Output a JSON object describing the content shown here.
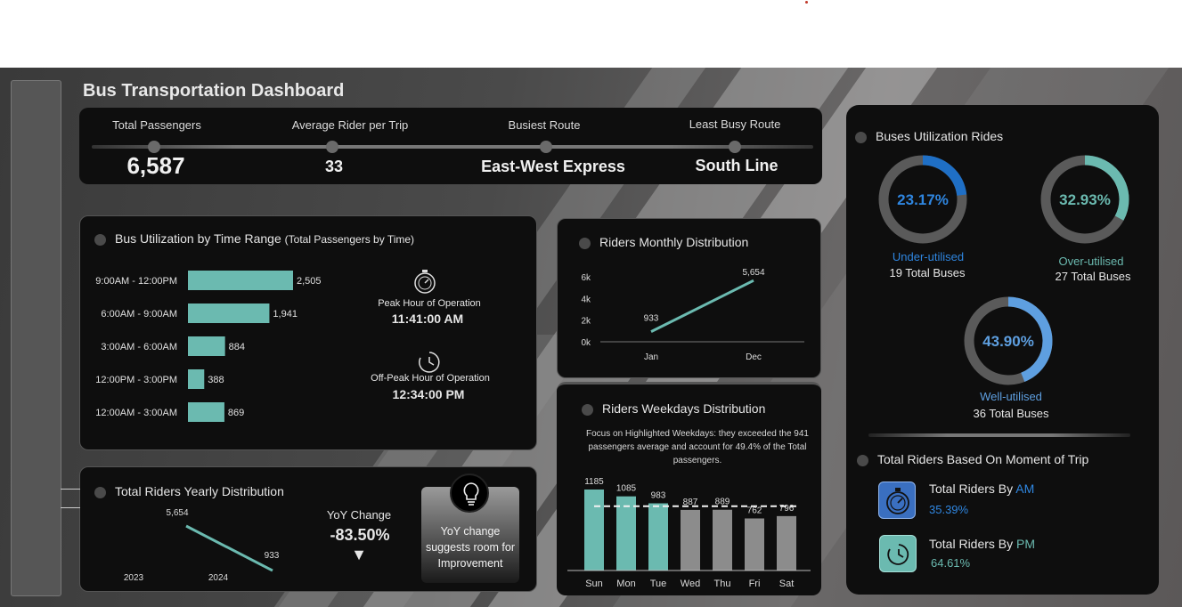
{
  "dashboard": {
    "title": "Bus Transportation Dashboard"
  },
  "kpis": [
    {
      "label": "Total Passengers",
      "value": "6,587"
    },
    {
      "label": "Average Rider per Trip",
      "value": "33"
    },
    {
      "label": "Busiest Route",
      "value": "East-West Express"
    },
    {
      "label": "Least Busy Route",
      "value": "South Line"
    }
  ],
  "time_range": {
    "title": "Bus Utilization by Time Range",
    "subtitle": "(Total Passengers by Time)",
    "peak_label": "Peak Hour of Operation",
    "peak_value": "11:41:00 AM",
    "offpeak_label": "Off-Peak Hour of Operation",
    "offpeak_value": "12:34:00 PM",
    "bar_color": "#6bbab0"
  },
  "monthly": {
    "title": "Riders Monthly Distribution",
    "line_color": "#6bbab0"
  },
  "weekdays": {
    "title": "Riders Weekdays Distribution",
    "note": "Focus on Highlighted Weekdays: they exceeded the 941 passengers average and account for 49.4% of the Total passengers.",
    "highlight_color": "#6bbab0",
    "other_color": "#8c8c8c"
  },
  "yearly": {
    "title": "Total Riders Yearly Distribution",
    "yoy_label": "YoY Change",
    "yoy_value": "-83.50%",
    "yoy_arrow": "▼",
    "insight": "YoY change suggests room for Improvement"
  },
  "utilization": {
    "title": "Buses Utilization Rides",
    "items": [
      {
        "pct": "23.17%",
        "fraction": 0.2317,
        "label": "Under-utilised",
        "count": "19 Total Buses",
        "color": "#1f6fc5",
        "text_color": "#2f86e0"
      },
      {
        "pct": "32.93%",
        "fraction": 0.3293,
        "label": "Over-utilised",
        "count": "27 Total Buses",
        "color": "#6bbab0",
        "text_color": "#6bbab0"
      },
      {
        "pct": "43.90%",
        "fraction": 0.439,
        "label": "Well-utilised",
        "count": "36 Total Buses",
        "color": "#5e9fe0",
        "text_color": "#5e9fe0"
      }
    ]
  },
  "moment": {
    "title": "Total Riders Based On Moment of Trip",
    "am_label_prefix": "Total Riders By ",
    "am_label_suffix": "AM",
    "am_value": "35.39%",
    "am_color": "#2f86e0",
    "pm_label_prefix": "Total Riders By ",
    "pm_label_suffix": "PM",
    "pm_value": "64.61%",
    "pm_color": "#6bbab0"
  },
  "chart_data": [
    {
      "type": "bar",
      "title": "Bus Utilization by Time Range",
      "orientation": "horizontal",
      "categories": [
        "9:00AM - 12:00PM",
        "6:00AM - 9:00AM",
        "3:00AM - 6:00AM",
        "12:00PM - 3:00PM",
        "12:00AM - 3:00AM"
      ],
      "values": [
        2505,
        1941,
        884,
        388,
        869
      ],
      "value_labels": [
        "2,505",
        "1,941",
        "884",
        "388",
        "869"
      ]
    },
    {
      "type": "line",
      "title": "Riders Monthly Distribution",
      "x": [
        "Jan",
        "Dec"
      ],
      "values": [
        933,
        5654
      ],
      "value_labels": [
        "933",
        "5,654"
      ],
      "yticks": [
        "0k",
        "2k",
        "4k",
        "6k"
      ],
      "ylim": [
        0,
        6000
      ]
    },
    {
      "type": "bar",
      "title": "Riders Weekdays Distribution",
      "categories": [
        "Sun",
        "Mon",
        "Tue",
        "Wed",
        "Thu",
        "Fri",
        "Sat"
      ],
      "values": [
        1185,
        1085,
        983,
        887,
        889,
        762,
        796
      ],
      "highlighted": [
        true,
        true,
        true,
        false,
        false,
        false,
        false
      ],
      "average": 941,
      "ylim": [
        0,
        1300
      ]
    },
    {
      "type": "line",
      "title": "Total Riders Yearly Distribution",
      "x": [
        "2023",
        "2024"
      ],
      "values": [
        5654,
        933
      ],
      "value_labels": [
        "5,654",
        "933"
      ]
    }
  ]
}
